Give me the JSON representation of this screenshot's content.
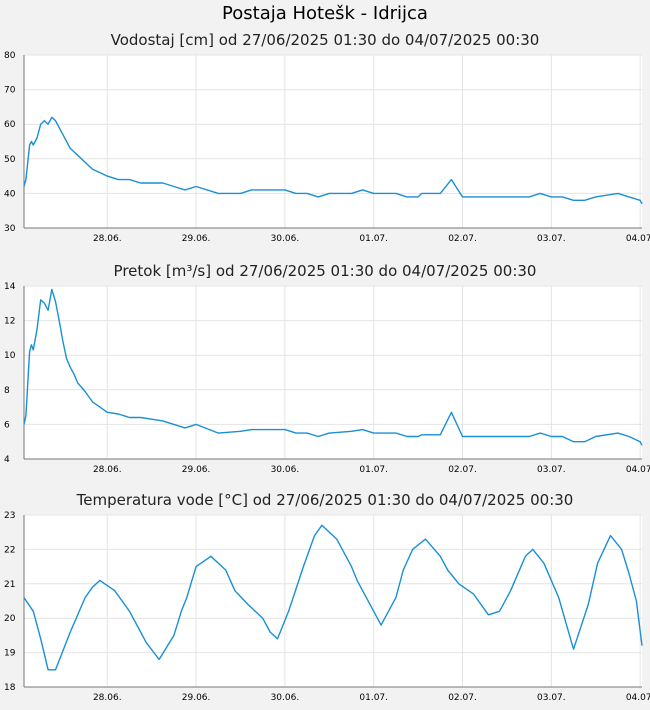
{
  "page": {
    "title": "Postaja Hotešk - Idrijca"
  },
  "colors": {
    "series": "#1a8fd6",
    "plot_bg": "#ffffff",
    "page_bg": "#f2f2f2",
    "grid": "#e4e4e4"
  },
  "chart_data": [
    {
      "type": "line",
      "title": "Vodostaj [cm] od 27/06/2025 01:30 do 04/07/2025 00:30",
      "xlim": [
        "2025-06-27T01:30",
        "2025-07-04T00:30"
      ],
      "ylim": [
        30,
        80
      ],
      "yticks": [
        30,
        40,
        50,
        60,
        70,
        80
      ],
      "xticks": [
        {
          "at": "2025-06-28T00:00",
          "label": "28.06."
        },
        {
          "at": "2025-06-29T00:00",
          "label": "29.06."
        },
        {
          "at": "2025-06-30T00:00",
          "label": "30.06."
        },
        {
          "at": "2025-07-01T00:00",
          "label": "01.07."
        },
        {
          "at": "2025-07-02T00:00",
          "label": "02.07."
        },
        {
          "at": "2025-07-03T00:00",
          "label": "03.07."
        },
        {
          "at": "2025-07-04T00:00",
          "label": "04.07."
        }
      ],
      "grid": true,
      "series": [
        {
          "x": [
            "2025-06-27T01:30",
            "2025-06-27T02:00",
            "2025-06-27T03:00",
            "2025-06-27T03:30",
            "2025-06-27T04:00",
            "2025-06-27T05:00",
            "2025-06-27T06:00",
            "2025-06-27T07:00",
            "2025-06-27T08:00",
            "2025-06-27T09:00",
            "2025-06-27T10:00",
            "2025-06-27T11:00",
            "2025-06-27T12:00",
            "2025-06-27T13:00",
            "2025-06-27T14:00",
            "2025-06-27T15:00",
            "2025-06-27T16:00",
            "2025-06-27T18:00",
            "2025-06-27T20:00",
            "2025-06-27T22:00",
            "2025-06-28T00:00",
            "2025-06-28T03:00",
            "2025-06-28T06:00",
            "2025-06-28T09:00",
            "2025-06-28T12:00",
            "2025-06-28T15:00",
            "2025-06-28T18:00",
            "2025-06-28T21:00",
            "2025-06-29T00:00",
            "2025-06-29T06:00",
            "2025-06-29T12:00",
            "2025-06-29T15:00",
            "2025-06-29T18:00",
            "2025-06-29T21:00",
            "2025-06-30T00:00",
            "2025-06-30T03:00",
            "2025-06-30T06:00",
            "2025-06-30T09:00",
            "2025-06-30T12:00",
            "2025-06-30T18:00",
            "2025-06-30T21:00",
            "2025-07-01T00:00",
            "2025-07-01T06:00",
            "2025-07-01T09:00",
            "2025-07-01T12:00",
            "2025-07-01T13:00",
            "2025-07-01T14:00",
            "2025-07-01T18:00",
            "2025-07-01T21:00",
            "2025-07-02T00:00",
            "2025-07-02T06:00",
            "2025-07-02T09:00",
            "2025-07-02T12:00",
            "2025-07-02T18:00",
            "2025-07-02T21:00",
            "2025-07-03T00:00",
            "2025-07-03T03:00",
            "2025-07-03T06:00",
            "2025-07-03T09:00",
            "2025-07-03T12:00",
            "2025-07-03T18:00",
            "2025-07-03T21:00",
            "2025-07-04T00:00",
            "2025-07-04T00:30"
          ],
          "y": [
            42,
            44,
            54,
            55,
            54,
            56,
            60,
            61,
            60,
            62,
            61,
            59,
            57,
            55,
            53,
            52,
            51,
            49,
            47,
            46,
            45,
            44,
            44,
            43,
            43,
            43,
            42,
            41,
            42,
            40,
            40,
            41,
            41,
            41,
            41,
            40,
            40,
            39,
            40,
            40,
            41,
            40,
            40,
            39,
            39,
            40,
            40,
            40,
            44,
            39,
            39,
            39,
            39,
            39,
            40,
            39,
            39,
            38,
            38,
            39,
            40,
            39,
            38,
            37
          ]
        }
      ]
    },
    {
      "type": "line",
      "title": "Pretok [m³/s] od 27/06/2025 01:30 do 04/07/2025 00:30",
      "xlim": [
        "2025-06-27T01:30",
        "2025-07-04T00:30"
      ],
      "ylim": [
        4,
        14
      ],
      "yticks": [
        4,
        6,
        8,
        10,
        12,
        14
      ],
      "xticks": [
        {
          "at": "2025-06-28T00:00",
          "label": "28.06."
        },
        {
          "at": "2025-06-29T00:00",
          "label": "29.06."
        },
        {
          "at": "2025-06-30T00:00",
          "label": "30.06."
        },
        {
          "at": "2025-07-01T00:00",
          "label": "01.07."
        },
        {
          "at": "2025-07-02T00:00",
          "label": "02.07."
        },
        {
          "at": "2025-07-03T00:00",
          "label": "03.07."
        },
        {
          "at": "2025-07-04T00:00",
          "label": "04.07."
        }
      ],
      "grid": true,
      "series": [
        {
          "x": [
            "2025-06-27T01:30",
            "2025-06-27T02:00",
            "2025-06-27T03:00",
            "2025-06-27T03:30",
            "2025-06-27T04:00",
            "2025-06-27T05:00",
            "2025-06-27T06:00",
            "2025-06-27T07:00",
            "2025-06-27T08:00",
            "2025-06-27T09:00",
            "2025-06-27T10:00",
            "2025-06-27T11:00",
            "2025-06-27T12:00",
            "2025-06-27T13:00",
            "2025-06-27T14:00",
            "2025-06-27T15:00",
            "2025-06-27T16:00",
            "2025-06-27T18:00",
            "2025-06-27T20:00",
            "2025-06-27T22:00",
            "2025-06-28T00:00",
            "2025-06-28T03:00",
            "2025-06-28T06:00",
            "2025-06-28T09:00",
            "2025-06-28T12:00",
            "2025-06-28T15:00",
            "2025-06-28T18:00",
            "2025-06-28T21:00",
            "2025-06-29T00:00",
            "2025-06-29T06:00",
            "2025-06-29T12:00",
            "2025-06-29T15:00",
            "2025-06-29T18:00",
            "2025-06-29T21:00",
            "2025-06-30T00:00",
            "2025-06-30T03:00",
            "2025-06-30T06:00",
            "2025-06-30T09:00",
            "2025-06-30T12:00",
            "2025-06-30T18:00",
            "2025-06-30T21:00",
            "2025-07-01T00:00",
            "2025-07-01T06:00",
            "2025-07-01T09:00",
            "2025-07-01T12:00",
            "2025-07-01T13:00",
            "2025-07-01T14:00",
            "2025-07-01T18:00",
            "2025-07-01T21:00",
            "2025-07-02T00:00",
            "2025-07-02T06:00",
            "2025-07-02T09:00",
            "2025-07-02T12:00",
            "2025-07-02T18:00",
            "2025-07-02T21:00",
            "2025-07-03T00:00",
            "2025-07-03T03:00",
            "2025-07-03T06:00",
            "2025-07-03T09:00",
            "2025-07-03T12:00",
            "2025-07-03T18:00",
            "2025-07-03T21:00",
            "2025-07-04T00:00",
            "2025-07-04T00:30"
          ],
          "y": [
            6.0,
            6.5,
            10.2,
            10.6,
            10.3,
            11.5,
            13.2,
            13.0,
            12.6,
            13.8,
            13.1,
            12.0,
            10.8,
            9.8,
            9.3,
            8.9,
            8.4,
            7.9,
            7.3,
            7.0,
            6.7,
            6.6,
            6.4,
            6.4,
            6.3,
            6.2,
            6.0,
            5.8,
            6.0,
            5.5,
            5.6,
            5.7,
            5.7,
            5.7,
            5.7,
            5.5,
            5.5,
            5.3,
            5.5,
            5.6,
            5.7,
            5.5,
            5.5,
            5.3,
            5.3,
            5.4,
            5.4,
            5.4,
            6.7,
            5.3,
            5.3,
            5.3,
            5.3,
            5.3,
            5.5,
            5.3,
            5.3,
            5.0,
            5.0,
            5.3,
            5.5,
            5.3,
            5.0,
            4.8
          ]
        }
      ]
    },
    {
      "type": "line",
      "title": "Temperatura vode [°C] od 27/06/2025 01:30 do 04/07/2025 00:30",
      "xlim": [
        "2025-06-27T01:30",
        "2025-07-04T00:30"
      ],
      "ylim": [
        18,
        23
      ],
      "yticks": [
        18,
        19,
        20,
        21,
        22,
        23
      ],
      "xticks": [
        {
          "at": "2025-06-28T00:00",
          "label": "28.06."
        },
        {
          "at": "2025-06-29T00:00",
          "label": "29.06."
        },
        {
          "at": "2025-06-30T00:00",
          "label": "30.06."
        },
        {
          "at": "2025-07-01T00:00",
          "label": "01.07."
        },
        {
          "at": "2025-07-02T00:00",
          "label": "02.07."
        },
        {
          "at": "2025-07-03T00:00",
          "label": "03.07."
        },
        {
          "at": "2025-07-04T00:00",
          "label": "04.07."
        }
      ],
      "grid": true,
      "series": [
        {
          "x": [
            "2025-06-27T01:30",
            "2025-06-27T04:00",
            "2025-06-27T06:00",
            "2025-06-27T08:00",
            "2025-06-27T10:00",
            "2025-06-27T14:00",
            "2025-06-27T18:00",
            "2025-06-27T20:00",
            "2025-06-27T22:00",
            "2025-06-28T02:00",
            "2025-06-28T06:00",
            "2025-06-28T09:00",
            "2025-06-28T10:30",
            "2025-06-28T14:00",
            "2025-06-28T18:00",
            "2025-06-28T20:00",
            "2025-06-28T21:30",
            "2025-06-29T00:00",
            "2025-06-29T04:00",
            "2025-06-29T08:00",
            "2025-06-29T10:30",
            "2025-06-29T14:00",
            "2025-06-29T18:00",
            "2025-06-29T20:00",
            "2025-06-29T22:00",
            "2025-06-30T01:00",
            "2025-06-30T05:00",
            "2025-06-30T08:00",
            "2025-06-30T10:00",
            "2025-06-30T14:00",
            "2025-06-30T18:00",
            "2025-06-30T19:30",
            "2025-06-30T22:00",
            "2025-07-01T02:00",
            "2025-07-01T06:00",
            "2025-07-01T08:00",
            "2025-07-01T10:30",
            "2025-07-01T14:00",
            "2025-07-01T18:00",
            "2025-07-01T20:00",
            "2025-07-01T23:00",
            "2025-07-02T03:00",
            "2025-07-02T07:00",
            "2025-07-02T10:00",
            "2025-07-02T13:00",
            "2025-07-02T17:00",
            "2025-07-02T19:00",
            "2025-07-02T22:00",
            "2025-07-03T02:00",
            "2025-07-03T06:00",
            "2025-07-03T10:00",
            "2025-07-03T12:30",
            "2025-07-03T16:00",
            "2025-07-03T19:00",
            "2025-07-03T21:00",
            "2025-07-03T23:00",
            "2025-07-04T00:30"
          ],
          "y": [
            20.6,
            20.2,
            19.4,
            18.5,
            18.5,
            19.6,
            20.6,
            20.9,
            21.1,
            20.8,
            20.2,
            19.6,
            19.3,
            18.8,
            19.5,
            20.2,
            20.6,
            21.5,
            21.8,
            21.4,
            20.8,
            20.4,
            20.0,
            19.6,
            19.4,
            20.2,
            21.5,
            22.4,
            22.7,
            22.3,
            21.5,
            21.1,
            20.6,
            19.8,
            20.6,
            21.4,
            22.0,
            22.3,
            21.8,
            21.4,
            21.0,
            20.7,
            20.1,
            20.2,
            20.8,
            21.8,
            22.0,
            21.6,
            20.6,
            19.1,
            20.4,
            21.6,
            22.4,
            22.0,
            21.3,
            20.5,
            19.2
          ]
        }
      ]
    }
  ]
}
